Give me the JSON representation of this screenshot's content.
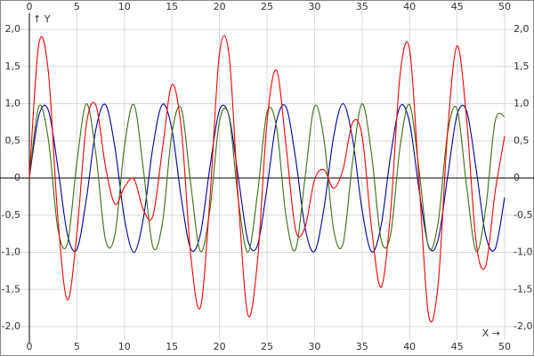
{
  "chart_data": {
    "type": "line",
    "x_label": "X →",
    "y_label": "↑ Y",
    "x": [
      0,
      1,
      2,
      3,
      4,
      5,
      6,
      7,
      8,
      9,
      10,
      11,
      12,
      13,
      14,
      15,
      16,
      17,
      18,
      19,
      20,
      21,
      22,
      23,
      24,
      25,
      26,
      27,
      28,
      29,
      30,
      31,
      32,
      33,
      34,
      35,
      36,
      37,
      38,
      39,
      40,
      41,
      42,
      43,
      44,
      45,
      46,
      47,
      48,
      49,
      50
    ],
    "series": [
      {
        "color": "#0000a0",
        "values": [
          0,
          0.841,
          0.909,
          0.141,
          -0.757,
          -0.959,
          -0.279,
          0.657,
          0.989,
          0.412,
          -0.544,
          -1.0,
          -0.537,
          0.42,
          0.991,
          0.65,
          -0.288,
          -0.961,
          -0.751,
          0.15,
          0.913,
          0.837,
          -0.009,
          -0.846,
          -0.906,
          -0.132,
          0.763,
          0.956,
          0.271,
          -0.664,
          -0.988,
          -0.404,
          0.551,
          1.0,
          0.529,
          -0.428,
          -0.992,
          -0.644,
          0.296,
          0.964,
          0.745,
          -0.159,
          -0.917,
          -0.832,
          0.018,
          0.851,
          0.902,
          0.124,
          -0.768,
          -0.954,
          -0.262
        ]
      },
      {
        "color": "#3a6e10",
        "values": [
          0,
          0.964,
          0.516,
          -0.688,
          -0.883,
          0.215,
          0.999,
          0.32,
          -0.827,
          -0.762,
          0.42,
          0.987,
          0.107,
          -0.929,
          -0.604,
          0.605,
          0.929,
          -0.108,
          -0.987,
          -0.42,
          0.762,
          0.827,
          -0.319,
          -0.999,
          -0.214,
          0.884,
          0.687,
          -0.516,
          -0.964,
          0.001,
          0.964,
          0.515,
          -0.689,
          -0.883,
          0.216,
          0.999,
          0.319,
          -0.827,
          -0.762,
          0.421,
          0.987,
          0.106,
          -0.929,
          -0.603,
          0.606,
          0.928,
          -0.109,
          -0.987,
          -0.419,
          0.763,
          0.827
        ]
      },
      {
        "color": "#ff0000",
        "values": [
          0,
          1.805,
          1.425,
          -0.547,
          -1.64,
          -0.744,
          0.72,
          0.977,
          0.162,
          -0.35,
          -0.124,
          -0.013,
          -0.43,
          -0.509,
          0.387,
          1.255,
          0.641,
          -1.069,
          -1.738,
          -0.27,
          1.675,
          1.664,
          -0.328,
          -1.845,
          -1.12,
          0.752,
          1.45,
          0.44,
          -0.693,
          -0.663,
          -0.024,
          0.111,
          -0.138,
          0.117,
          0.745,
          0.571,
          -0.673,
          -1.471,
          -0.466,
          1.385,
          1.732,
          -0.053,
          -1.846,
          -1.435,
          0.624,
          1.779,
          0.793,
          -0.863,
          -1.187,
          -0.191,
          0.565
        ]
      }
    ],
    "xlim": [
      0,
      50
    ],
    "xticks": [
      0,
      5,
      10,
      15,
      20,
      25,
      30,
      35,
      40,
      45,
      50
    ],
    "ylim": [
      -2.0,
      2.0
    ],
    "yticks": [
      {
        "value": -2.0,
        "label": "-2,0"
      },
      {
        "value": -1.5,
        "label": "-1,5"
      },
      {
        "value": -1.0,
        "label": "-1,0"
      },
      {
        "value": -0.5,
        "label": "-0,5"
      },
      0,
      {
        "value": 0.5,
        "label": "0,5"
      },
      {
        "value": 1.0,
        "label": "1,0"
      },
      {
        "value": 1.5,
        "label": "1,5"
      },
      {
        "value": 2.0,
        "label": "2,0"
      }
    ],
    "grid": true
  }
}
